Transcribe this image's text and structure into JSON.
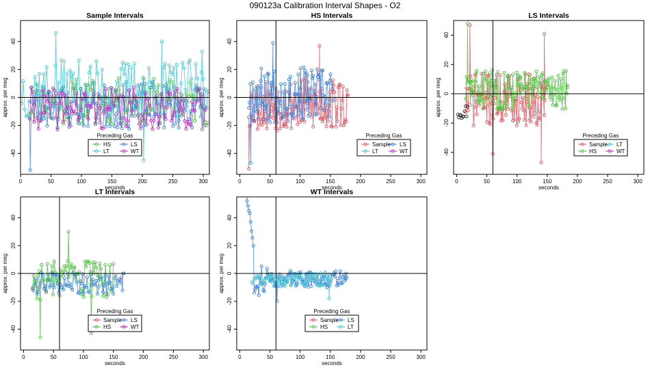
{
  "figure": {
    "title": "090123a   Calibration Interval Shapes - O2"
  },
  "colors": {
    "Sample": "#e8505e",
    "HS": "#4cc23c",
    "LS": "#3b82d8",
    "LT": "#3cc8d6",
    "WT": "#c026c0",
    "unknown": "#222222"
  },
  "chart_data": [
    {
      "type": "scatter",
      "title": "Sample Intervals",
      "xlabel": "seconds",
      "ylabel": "approx. per meg",
      "xlim": [
        0,
        310
      ],
      "ylim": [
        -55,
        55
      ],
      "xticks": [
        0,
        50,
        100,
        150,
        200,
        250,
        300
      ],
      "yticks": [
        -40,
        -20,
        0,
        20,
        40
      ],
      "vline": null,
      "legend_title": "Preceding Gas",
      "legend_position": "bottom-center",
      "legend": [
        "HS",
        "LS",
        "LT",
        "WT"
      ],
      "series": [
        {
          "name": "HS",
          "color_key": "HS",
          "x_start": 15,
          "x_end": 308,
          "step": 2.4,
          "center": -3,
          "amp": 17,
          "seed": 11
        },
        {
          "name": "LS",
          "color_key": "LS",
          "x_start": 15,
          "x_end": 308,
          "step": 2.4,
          "center": -6,
          "amp": 17,
          "seed": 23
        },
        {
          "name": "LT",
          "color_key": "LT",
          "x_start": 2,
          "x_end": 305,
          "step": 2.4,
          "center": 6,
          "amp": 21,
          "seed": 37
        },
        {
          "name": "WT",
          "color_key": "WT",
          "x_start": 15,
          "x_end": 305,
          "step": 2.4,
          "center": -8,
          "amp": 15,
          "seed": 41
        }
      ],
      "anchors": [
        {
          "series": "LT",
          "x": 58,
          "y": 46
        },
        {
          "series": "LS",
          "x": 16,
          "y": -52
        },
        {
          "series": "LT",
          "x": 232,
          "y": 40
        },
        {
          "series": "LT",
          "x": 298,
          "y": 33
        },
        {
          "series": "LT",
          "x": 202,
          "y": -45
        }
      ]
    },
    {
      "type": "scatter",
      "title": "HS Intervals",
      "xlabel": "seconds",
      "ylabel": "approx. per meg",
      "xlim": [
        -5,
        310
      ],
      "ylim": [
        -55,
        55
      ],
      "xticks": [
        0,
        50,
        100,
        150,
        200,
        250,
        300
      ],
      "yticks": [
        -40,
        -20,
        0,
        20,
        40
      ],
      "vline": 60,
      "legend_title": "Preceding Gas",
      "legend_position": "bottom-right",
      "legend": [
        "Sample",
        "LS",
        "LT",
        "WT"
      ],
      "series": [
        {
          "name": "Sample",
          "color_key": "Sample",
          "x_start": 15,
          "x_end": 180,
          "step": 1.3,
          "center": -5,
          "amp": 19,
          "seed": 53
        },
        {
          "name": "LS",
          "color_key": "LS",
          "x_start": 15,
          "x_end": 155,
          "step": 1.3,
          "center": 2,
          "amp": 20,
          "seed": 67
        }
      ],
      "anchors": [
        {
          "series": "Sample",
          "x": 15,
          "y": -51
        },
        {
          "series": "LS",
          "x": 18,
          "y": -47
        },
        {
          "series": "LS",
          "x": 55,
          "y": 39
        },
        {
          "series": "Sample",
          "x": 132,
          "y": 37
        },
        {
          "series": "Sample",
          "x": 178,
          "y": 1
        }
      ]
    },
    {
      "type": "scatter",
      "title": "LS Intervals",
      "xlabel": "seconds",
      "ylabel": "approx. per meg",
      "xlim": [
        -5,
        310
      ],
      "ylim": [
        -55,
        50
      ],
      "xticks": [
        0,
        50,
        100,
        150,
        200,
        250,
        300
      ],
      "yticks": [
        -40,
        -20,
        0,
        20,
        40
      ],
      "vline": 60,
      "legend_title": "Preceding Gas",
      "legend_position": "bottom-right",
      "legend": [
        "Sample",
        "LT",
        "HS",
        "WT"
      ],
      "series": [
        {
          "name": "Sample",
          "color_key": "Sample",
          "x_start": 15,
          "x_end": 150,
          "step": 1.3,
          "center": -4,
          "amp": 18,
          "seed": 71
        },
        {
          "name": "HS",
          "color_key": "HS",
          "x_start": 15,
          "x_end": 185,
          "step": 1.3,
          "center": 3,
          "amp": 14,
          "seed": 83
        },
        {
          "name": "unknown",
          "color_key": "unknown",
          "x_start": 2,
          "x_end": 18,
          "step": 1.6,
          "center": -12,
          "amp": 5,
          "seed": 97,
          "markers_only": true
        }
      ],
      "anchors": [
        {
          "series": "HS",
          "x": 18,
          "y": 48
        },
        {
          "series": "Sample",
          "x": 22,
          "y": 47
        },
        {
          "series": "Sample",
          "x": 60,
          "y": -41
        },
        {
          "series": "Sample",
          "x": 140,
          "y": -47
        },
        {
          "series": "Sample",
          "x": 145,
          "y": 41
        },
        {
          "series": "HS",
          "x": 182,
          "y": 0
        }
      ]
    },
    {
      "type": "scatter",
      "title": "LT Intervals",
      "xlabel": "seconds",
      "ylabel": "approx. per meg",
      "xlim": [
        -5,
        310
      ],
      "ylim": [
        -55,
        55
      ],
      "xticks": [
        0,
        50,
        100,
        150,
        200,
        250,
        300
      ],
      "yticks": [
        -40,
        -20,
        0,
        20,
        40
      ],
      "vline": 60,
      "legend_title": "Preceding Gas",
      "legend_position": "bottom-center",
      "legend": [
        "Sample",
        "LS",
        "HS",
        "WT"
      ],
      "series": [
        {
          "name": "HS",
          "color_key": "HS",
          "x_start": 15,
          "x_end": 150,
          "step": 1.9,
          "center": -5,
          "amp": 14,
          "seed": 103
        },
        {
          "name": "LS",
          "color_key": "LS",
          "x_start": 15,
          "x_end": 168,
          "step": 1.9,
          "center": -7,
          "amp": 8,
          "seed": 109
        }
      ],
      "anchors": [
        {
          "series": "HS",
          "x": 28,
          "y": -46
        },
        {
          "series": "HS",
          "x": 75,
          "y": 30
        },
        {
          "series": "HS",
          "x": 113,
          "y": -43
        },
        {
          "series": "LS",
          "x": 166,
          "y": 0
        }
      ]
    },
    {
      "type": "scatter",
      "title": "WT Intervals",
      "xlabel": "seconds",
      "ylabel": "approx. per meg",
      "xlim": [
        -5,
        310
      ],
      "ylim": [
        -55,
        55
      ],
      "xticks": [
        0,
        50,
        100,
        150,
        200,
        250,
        300
      ],
      "yticks": [
        -40,
        -20,
        0,
        20,
        40
      ],
      "vline": 60,
      "legend_title": "Preceding Gas",
      "legend_position": "bottom-center",
      "legend": [
        "Sample",
        "LS",
        "HS",
        "LT"
      ],
      "series": [
        {
          "name": "LS",
          "color_key": "LS",
          "x_start": 12,
          "x_end": 178,
          "step": 1.5,
          "center": -4,
          "amp": 6,
          "seed": 127,
          "decay_from": 55
        },
        {
          "name": "LT",
          "color_key": "LT",
          "x_start": 20,
          "x_end": 150,
          "step": 1.9,
          "center": -4,
          "amp": 5,
          "seed": 131
        }
      ],
      "anchors": [
        {
          "series": "LS",
          "x": 12,
          "y": 52
        },
        {
          "series": "LS",
          "x": 62,
          "y": -20
        },
        {
          "series": "LT",
          "x": 148,
          "y": -18
        },
        {
          "series": "LS",
          "x": 176,
          "y": 0
        }
      ]
    }
  ]
}
